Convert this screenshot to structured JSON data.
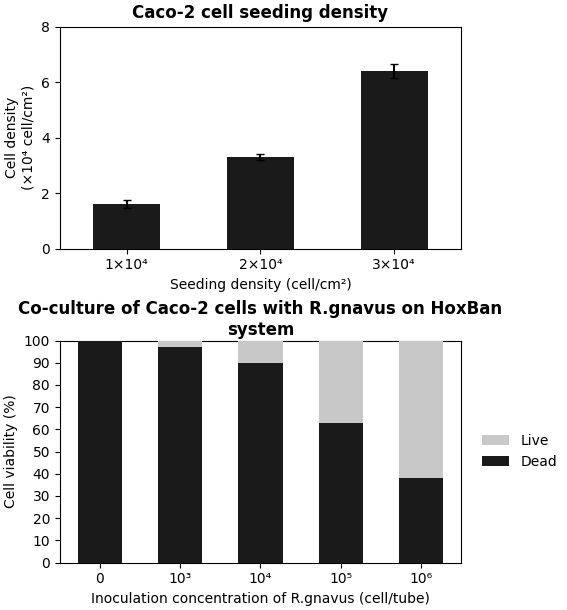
{
  "chart_data": [
    {
      "type": "bar",
      "title": "Caco-2 cell seeding density",
      "categories": [
        "1×10⁴",
        "2×10⁴",
        "3×10⁴"
      ],
      "values": [
        1.6,
        3.3,
        6.4
      ],
      "errors": [
        0.15,
        0.1,
        0.25
      ],
      "color": "#1a1a1a",
      "x_label": "Seeding density (cell/cm²)",
      "y_label": "Cell density\n(×10⁴ cell/cm²)",
      "ylim": [
        0,
        8
      ],
      "yticks": [
        0,
        2,
        4,
        6,
        8
      ],
      "grid": false
    },
    {
      "type": "bar",
      "stacked": true,
      "title": "Co-culture of Caco-2 cells with R.gnavus on HoxBan system",
      "categories": [
        "0",
        "10³",
        "10⁴",
        "10⁵",
        "10⁶"
      ],
      "series": [
        {
          "name": "Dead",
          "color": "#1a1a1a",
          "values": [
            100,
            97,
            90,
            63,
            38
          ]
        },
        {
          "name": "Live",
          "color": "#c8c8c8",
          "values": [
            0,
            3,
            10,
            37,
            62
          ]
        }
      ],
      "x_label": "Inoculation concentration of R.gnavus (cell/tube)",
      "y_label": "Cell viability (%)",
      "ylim": [
        0,
        100
      ],
      "yticks": [
        0,
        10,
        20,
        30,
        40,
        50,
        60,
        70,
        80,
        90,
        100
      ],
      "grid": false,
      "legend": "center left"
    }
  ]
}
